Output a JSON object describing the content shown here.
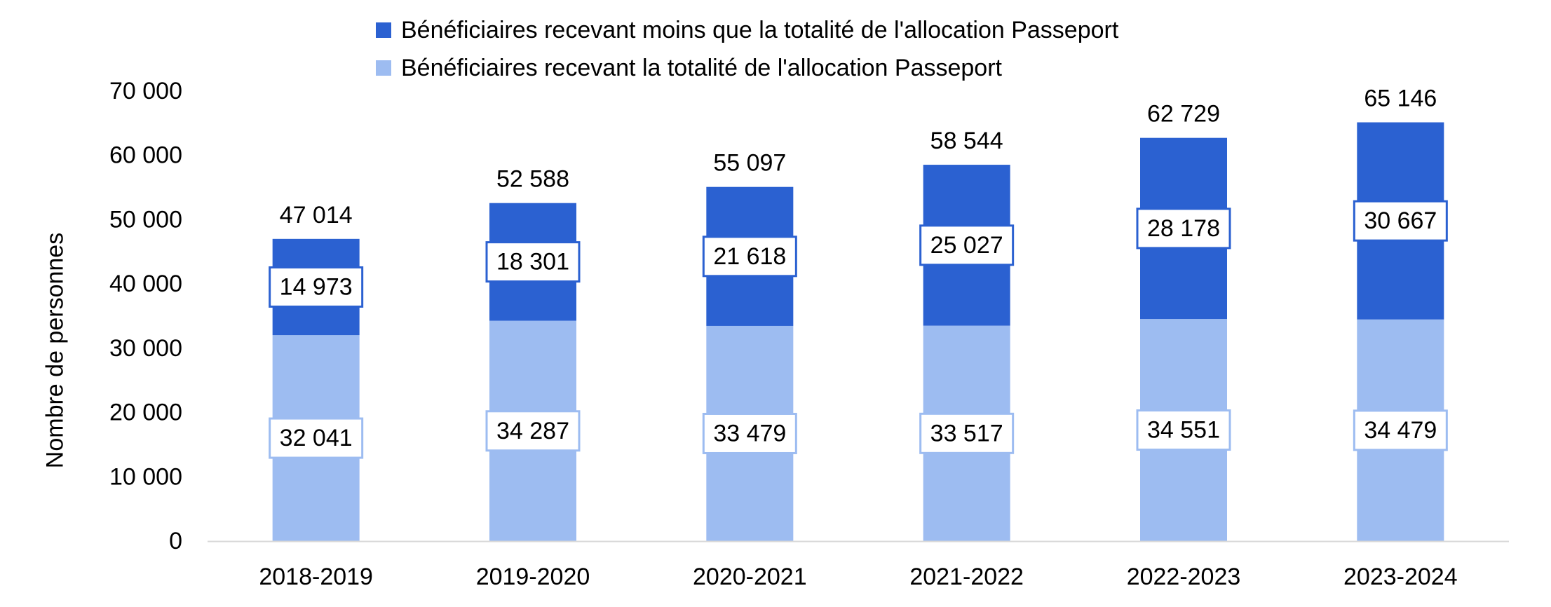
{
  "chart_data": {
    "type": "bar",
    "stacked": true,
    "categories": [
      "2018-2019",
      "2019-2020",
      "2020-2021",
      "2021-2022",
      "2022-2023",
      "2023-2024"
    ],
    "series": [
      {
        "name": "Bénéficiaires recevant la totalité de l'allocation Passeport",
        "values": [
          32041,
          34287,
          33479,
          33517,
          34551,
          34479
        ],
        "labels": [
          "32 041",
          "34 287",
          "33 479",
          "33 517",
          "34 551",
          "34 479"
        ],
        "color": "#9dbcf1"
      },
      {
        "name": "Bénéficiaires recevant moins que la totalité de l'allocation Passeport",
        "values": [
          14973,
          18301,
          21618,
          25027,
          28178,
          30667
        ],
        "labels": [
          "14 973",
          "18 301",
          "21 618",
          "25 027",
          "28 178",
          "30 667"
        ],
        "color": "#2b61d1"
      }
    ],
    "totals": [
      47014,
      52588,
      55097,
      58544,
      62729,
      65146
    ],
    "total_labels": [
      "47 014",
      "52 588",
      "55 097",
      "58 544",
      "62 729",
      "65 146"
    ],
    "ylabel": "Nombre de personnes",
    "xlabel": "",
    "ylim": [
      0,
      70000
    ],
    "yticks": [
      0,
      10000,
      20000,
      30000,
      40000,
      50000,
      60000,
      70000
    ],
    "ytick_labels": [
      "0",
      "10 000",
      "20 000",
      "30 000",
      "40 000",
      "50 000",
      "60 000",
      "70 000"
    ],
    "grid": false,
    "legend_position": "top"
  }
}
